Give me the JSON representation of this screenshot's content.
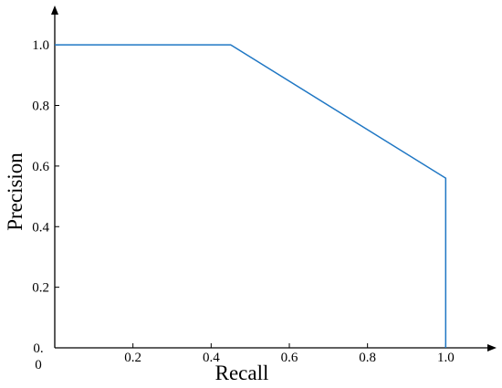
{
  "chart_data": {
    "type": "line",
    "title": "",
    "xlabel": "Recall",
    "ylabel": "Precision",
    "xlim": [
      0.0,
      1.13
    ],
    "ylim": [
      0.0,
      1.13
    ],
    "grid": false,
    "legend": "none",
    "x_tick_labels": [
      "0.2",
      "0.4",
      "0.6",
      "0.8",
      "1.0"
    ],
    "x_tick_values": [
      0.2,
      0.4,
      0.6,
      0.8,
      1.0
    ],
    "y_tick_labels": [
      "0.2",
      "0.4",
      "0.6",
      "0.8",
      "1.0"
    ],
    "y_tick_values": [
      0.2,
      0.4,
      0.6,
      0.8,
      1.0
    ],
    "origin_label_top": "0.",
    "origin_label_bottom": "0",
    "series": [
      {
        "color": "#1f77c4",
        "x": [
          0.0,
          0.45,
          1.0,
          1.0
        ],
        "y": [
          1.0,
          1.0,
          0.56,
          0.0
        ]
      }
    ]
  }
}
